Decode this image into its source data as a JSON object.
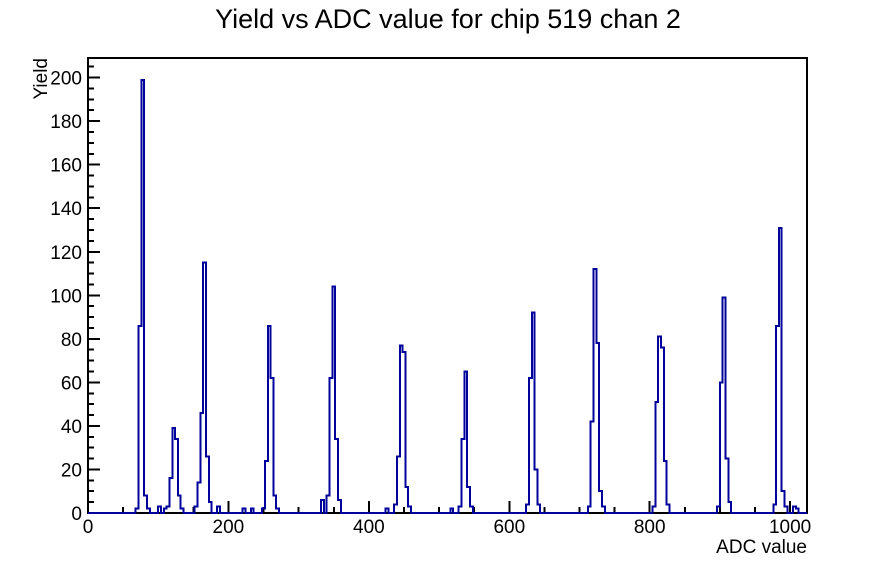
{
  "page": {
    "background": "#ffffff"
  },
  "chart_data": {
    "type": "histogram",
    "title": "Yield vs ADC value for chip 519 chan 2",
    "xlabel": "ADC value",
    "ylabel": "Yield",
    "xlim": [
      0,
      1024
    ],
    "ylim": [
      0,
      209
    ],
    "x_major_ticks": [
      0,
      200,
      400,
      600,
      800,
      1000
    ],
    "x_minor_step": 50,
    "y_major_ticks": [
      0,
      20,
      40,
      60,
      80,
      100,
      120,
      140,
      160,
      180,
      200
    ],
    "y_minor_step": 5,
    "grid": false,
    "legend": "none",
    "line_color": "#00009a",
    "axis_color": "#000000",
    "text_color": "#000000",
    "bin_width": 4,
    "bins": [
      [
        68,
        2
      ],
      [
        72,
        86
      ],
      [
        76,
        199
      ],
      [
        80,
        8
      ],
      [
        84,
        2
      ],
      [
        100,
        3
      ],
      [
        108,
        2
      ],
      [
        112,
        3
      ],
      [
        116,
        16
      ],
      [
        120,
        39
      ],
      [
        124,
        34
      ],
      [
        128,
        8
      ],
      [
        132,
        2
      ],
      [
        152,
        3
      ],
      [
        156,
        14
      ],
      [
        160,
        46
      ],
      [
        164,
        115
      ],
      [
        168,
        26
      ],
      [
        172,
        5
      ],
      [
        184,
        3
      ],
      [
        220,
        2
      ],
      [
        232,
        2
      ],
      [
        248,
        2
      ],
      [
        252,
        24
      ],
      [
        256,
        86
      ],
      [
        260,
        62
      ],
      [
        264,
        8
      ],
      [
        268,
        2
      ],
      [
        332,
        6
      ],
      [
        340,
        8
      ],
      [
        344,
        62
      ],
      [
        348,
        104
      ],
      [
        352,
        34
      ],
      [
        356,
        6
      ],
      [
        424,
        2
      ],
      [
        436,
        4
      ],
      [
        440,
        26
      ],
      [
        444,
        77
      ],
      [
        448,
        74
      ],
      [
        452,
        12
      ],
      [
        456,
        3
      ],
      [
        516,
        2
      ],
      [
        528,
        3
      ],
      [
        532,
        34
      ],
      [
        536,
        65
      ],
      [
        540,
        12
      ],
      [
        544,
        3
      ],
      [
        624,
        4
      ],
      [
        628,
        62
      ],
      [
        632,
        92
      ],
      [
        636,
        20
      ],
      [
        640,
        4
      ],
      [
        712,
        3
      ],
      [
        716,
        42
      ],
      [
        720,
        112
      ],
      [
        724,
        78
      ],
      [
        728,
        10
      ],
      [
        732,
        3
      ],
      [
        804,
        3
      ],
      [
        808,
        51
      ],
      [
        812,
        81
      ],
      [
        816,
        76
      ],
      [
        820,
        24
      ],
      [
        824,
        4
      ],
      [
        896,
        3
      ],
      [
        900,
        60
      ],
      [
        904,
        99
      ],
      [
        908,
        25
      ],
      [
        912,
        5
      ],
      [
        976,
        4
      ],
      [
        980,
        86
      ],
      [
        984,
        131
      ],
      [
        988,
        10
      ],
      [
        992,
        3
      ],
      [
        1004,
        3
      ],
      [
        1008,
        2
      ]
    ]
  }
}
